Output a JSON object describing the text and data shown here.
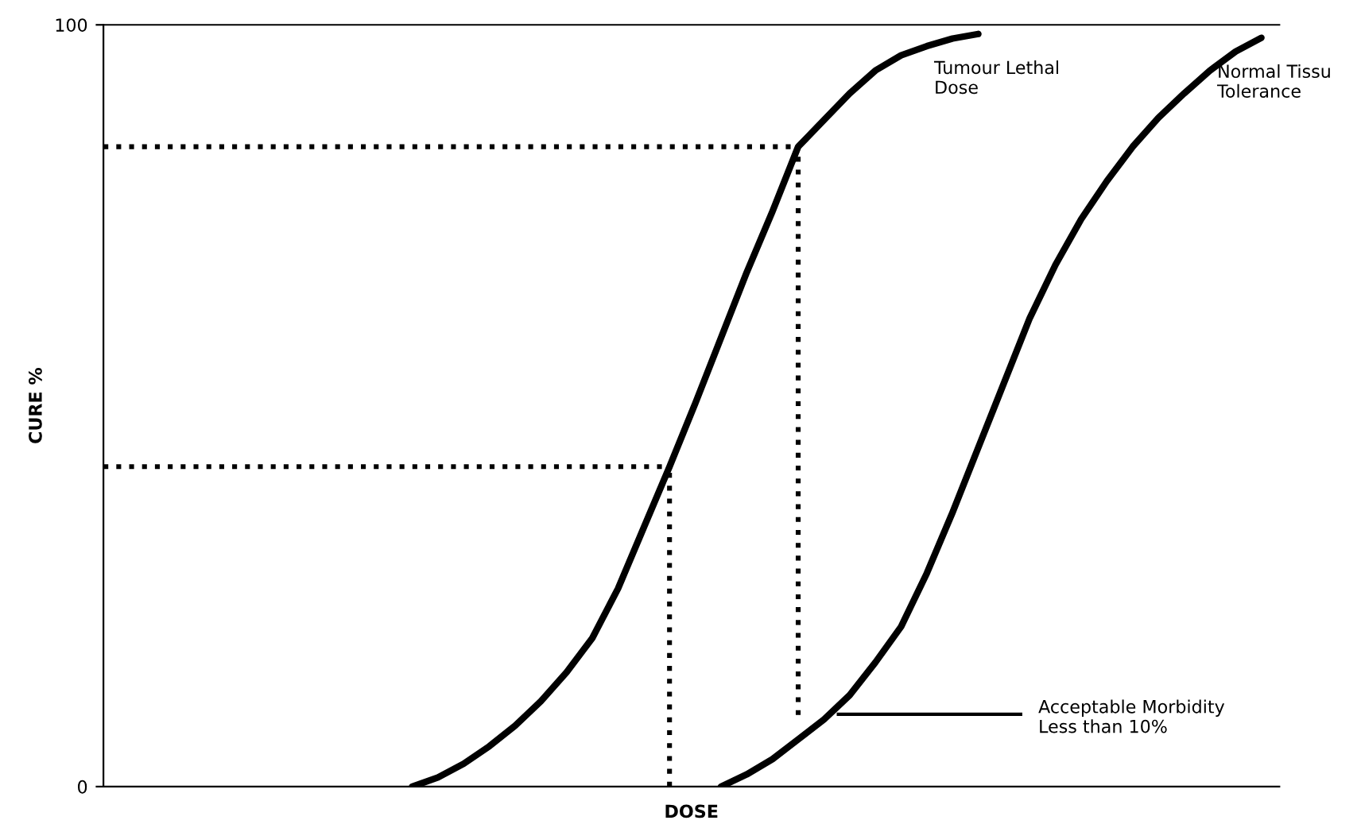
{
  "chart_data": {
    "type": "line",
    "xlabel": "DOSE",
    "ylabel": "CURE %",
    "ylim": [
      0,
      100
    ],
    "yticks": [
      0,
      100
    ],
    "tick_labels": "y",
    "legend": false,
    "marker": "none",
    "categories": [
      null,
      null,
      null,
      null,
      null,
      null,
      null,
      null,
      null,
      null,
      null,
      null,
      null,
      null,
      null,
      null,
      null,
      null,
      null,
      null,
      null,
      null,
      null,
      null,
      null,
      null,
      null,
      null,
      null,
      null,
      null,
      null,
      null,
      null,
      null,
      null,
      null,
      null,
      null,
      null,
      null,
      null,
      null,
      null,
      null,
      null
    ],
    "series": [
      {
        "name": "Tumour Lethal\nDose",
        "color": "#000000",
        "line_style": "solid",
        "values": [
          null,
          null,
          null,
          null,
          null,
          null,
          null,
          null,
          null,
          null,
          null,
          null,
          0,
          1.2,
          3,
          5.3,
          8,
          11.2,
          15,
          19.5,
          26,
          34,
          42,
          50.3,
          58.9,
          67.5,
          75.5,
          84,
          87.5,
          91,
          94,
          96,
          97.2,
          98.2,
          98.8,
          null,
          null,
          null,
          null,
          null,
          null,
          null,
          null,
          null,
          null,
          null
        ]
      },
      {
        "name": "Normal Tissu\nTolerance",
        "color": "#000000",
        "line_style": "solid",
        "values": [
          null,
          null,
          null,
          null,
          null,
          null,
          null,
          null,
          null,
          null,
          null,
          null,
          null,
          null,
          null,
          null,
          null,
          null,
          null,
          null,
          null,
          null,
          null,
          null,
          0,
          1.6,
          3.6,
          6.2,
          8.8,
          12,
          16.3,
          21,
          28,
          36,
          44.5,
          53,
          61.5,
          68.5,
          74.5,
          79.5,
          84,
          87.8,
          91,
          94,
          96.5,
          98.3
        ]
      },
      {
        "color": "#000000",
        "line_style": "dotted",
        "values": [
          84,
          84,
          84,
          84,
          84,
          84,
          84,
          84,
          84,
          84,
          84,
          84,
          84,
          84,
          84,
          84,
          84,
          84,
          84,
          84,
          84,
          84,
          84,
          84,
          84,
          84,
          84,
          84,
          null,
          null,
          null,
          null,
          null,
          null,
          null,
          null,
          null,
          null,
          null,
          null,
          null,
          null,
          null,
          null,
          null,
          null
        ],
        "errors": [
          null,
          null,
          null,
          null,
          null,
          null,
          null,
          null,
          null,
          null,
          null,
          null,
          null,
          null,
          null,
          null,
          null,
          null,
          null,
          null,
          null,
          null,
          null,
          null,
          null,
          null,
          null,
          [
            9.4,
            84
          ],
          null,
          null,
          null,
          null,
          null,
          null,
          null,
          null,
          null,
          null,
          null,
          null,
          null,
          null,
          null,
          null,
          null,
          null
        ]
      },
      {
        "color": "#000000",
        "line_style": "dotted",
        "values": [
          42,
          42,
          42,
          42,
          42,
          42,
          42,
          42,
          42,
          42,
          42,
          42,
          42,
          42,
          42,
          42,
          42,
          42,
          42,
          42,
          42,
          42,
          42,
          null,
          null,
          null,
          null,
          null,
          null,
          null,
          null,
          null,
          null,
          null,
          null,
          null,
          null,
          null,
          null,
          null,
          null,
          null,
          null,
          null,
          null,
          null
        ],
        "errors": [
          null,
          null,
          null,
          null,
          null,
          null,
          null,
          null,
          null,
          null,
          null,
          null,
          null,
          null,
          null,
          null,
          null,
          null,
          null,
          null,
          null,
          null,
          [
            0,
            42
          ],
          null,
          null,
          null,
          null,
          null,
          null,
          null,
          null,
          null,
          null,
          null,
          null,
          null,
          null,
          null,
          null,
          null,
          null,
          null,
          null,
          null,
          null,
          null
        ]
      }
    ],
    "annotations": [
      "Acceptable Morbidity\nLess than 10%"
    ]
  }
}
